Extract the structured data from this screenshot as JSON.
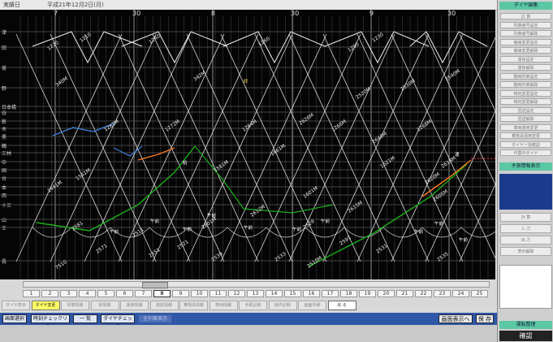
{
  "header": {
    "left_text": "実績日",
    "date_text": "平成21年12月2日(月)",
    "time_marks": [
      "7",
      "30",
      "8",
      "30",
      "9",
      "30"
    ]
  },
  "stations": [
    "津",
    "田",
    "美",
    "野",
    "日本橋",
    "谷",
    "新",
    "木",
    "黒",
    "鶴",
    "三林",
    "中",
    "国",
    "台",
    "本",
    "西",
    "十三",
    "山",
    "王",
    "長"
  ],
  "train_labels": [
    "1220",
    "1240",
    "1260",
    "1290",
    "340M",
    "342M",
    "1561M",
    "1581M",
    "1601M",
    "1621M",
    "1641M",
    "1661M",
    "1262M",
    "1264M",
    "1266M",
    "1268M",
    "1272M",
    "2601M",
    "2605M",
    "2612M",
    "2615M",
    "2618M",
    "2620M",
    "2626M",
    "2640M",
    "7510",
    "2511",
    "2521",
    "2529",
    "2531",
    "2533",
    "2535",
    "2539",
    "2551",
    "2571",
    "2581",
    "2591",
    "2510M",
    "2520M",
    "2530M",
    "2540M",
    "1210",
    "1230"
  ],
  "train_markers": [
    "午前",
    "午前",
    "午前",
    "午前",
    "午前",
    "午前",
    "午前",
    "午前",
    "午前",
    "午前",
    "始",
    "終",
    "運"
  ],
  "right_panel": {
    "head1": "ダイヤ編集",
    "items": [
      "計 算",
      "列車番号設定",
      "列車番号解除",
      "番線変更設定",
      "番線変更解除",
      "運休設定",
      "運休解除",
      "臨時列車設定",
      "臨時列車解除",
      "時刻変更設定",
      "時刻変更解除",
      "回送設定",
      "回送解除",
      "車両運用変更",
      "乗務員運用変更",
      "ダイヤ一括確認",
      "作業中ダイヤ"
    ],
    "head2": "予測情報表示",
    "items2": [
      "計 算",
      "入 力",
      "出 力",
      "表示解除"
    ],
    "head3": "運転整理",
    "confirm": "確認"
  },
  "pages": [
    "1",
    "2",
    "3",
    "4",
    "5",
    "6",
    "7",
    "8",
    "9",
    "10",
    "11",
    "12",
    "13",
    "14",
    "15",
    "16",
    "17",
    "18",
    "19",
    "20",
    "21",
    "22",
    "23",
    "24",
    "25"
  ],
  "active_page": "8",
  "function_buttons": [
    {
      "label": "ダイヤ表示",
      "style": "plain"
    },
    {
      "label": "ダイヤ変更",
      "style": "yellow"
    },
    {
      "label": "列車情報",
      "style": "plain"
    },
    {
      "label": "駅情報",
      "style": "plain"
    },
    {
      "label": "運用情報",
      "style": "plain"
    },
    {
      "label": "遅延情報",
      "style": "plain"
    },
    {
      "label": "乗務員情報",
      "style": "plain"
    },
    {
      "label": "車両情報",
      "style": "plain"
    },
    {
      "label": "手配記録",
      "style": "plain"
    },
    {
      "label": "操作記録",
      "style": "plain"
    },
    {
      "label": "画面印刷",
      "style": "plain"
    },
    {
      "label": "戻 る",
      "style": "white"
    }
  ],
  "action_buttons": [
    {
      "label": "画面選択",
      "style": "normal"
    },
    {
      "label": "時刻チェックリスト",
      "style": "normal"
    },
    {
      "label": "一 覧",
      "style": "normal"
    },
    {
      "label": "ダイヤチェック",
      "style": "normal"
    },
    {
      "label": "全列車表示",
      "style": "dim"
    },
    {
      "label": "画面表示へ",
      "style": "big"
    },
    {
      "label": "保 存",
      "style": "big"
    }
  ],
  "colors": {
    "background": "#050505",
    "grid": "#3c3c3c",
    "line_white": "#f0f0f0",
    "line_green": "#1bb01b",
    "line_orange": "#ff7a20",
    "line_blue": "#3d7fd6",
    "accent": "#5cc7a5",
    "panel_blue": "#2f57a7"
  }
}
